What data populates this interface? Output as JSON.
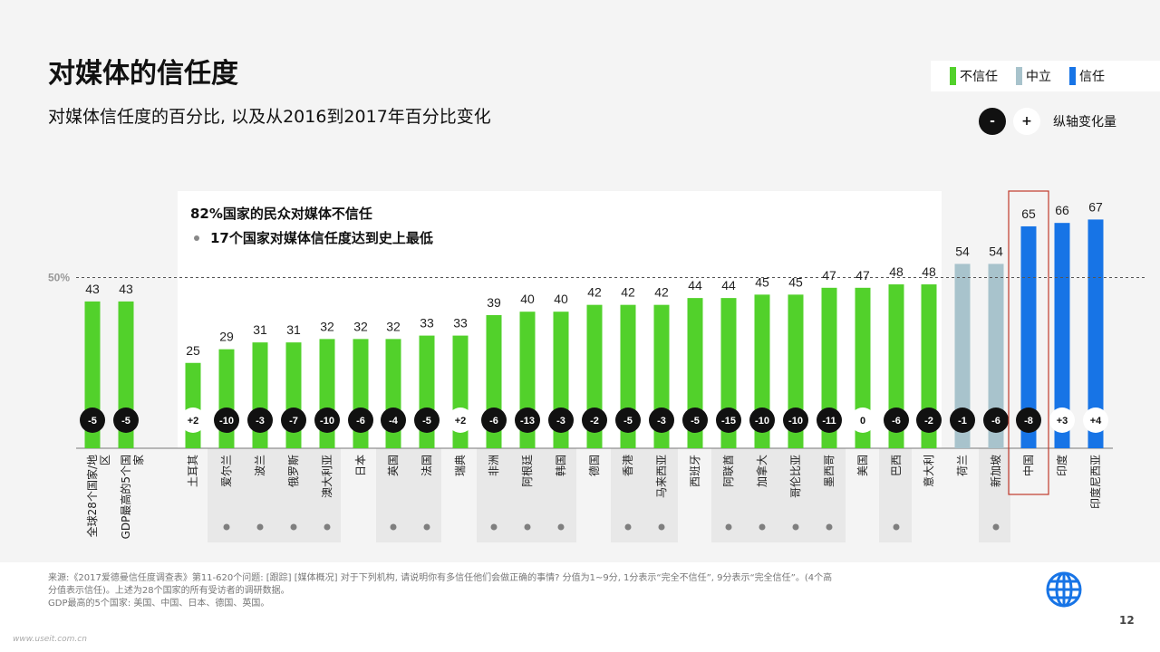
{
  "title": "对媒体的信任度",
  "subtitle": "对媒体信任度的百分比, 以及从2016到2017年百分比变化",
  "legend": [
    {
      "label": "不信任",
      "color": "#52d12b"
    },
    {
      "label": "中立",
      "color": "#a8c3cc"
    },
    {
      "label": "信任",
      "color": "#1774e6"
    }
  ],
  "change_key": {
    "minus": "-",
    "plus": "+",
    "label": "纵轴变化量"
  },
  "callout": {
    "title": "82%国家的民众对媒体不信任",
    "bullet": "17个国家对媒体信任度达到史上最低"
  },
  "colors": {
    "distrust": "#52d12b",
    "neutral": "#a8c3cc",
    "trust": "#1774e6",
    "highlight_box": "#c0392b"
  },
  "chart_data": {
    "type": "bar",
    "reference_line": {
      "value": 50,
      "label": "50%"
    },
    "categories": [
      "全球28个国家/地区",
      "GDP最高的5个国家",
      "土耳其",
      "爱尔兰",
      "波兰",
      "俄罗斯",
      "澳大利亚",
      "日本",
      "英国",
      "法国",
      "瑞典",
      "非洲",
      "阿根廷",
      "韩国",
      "德国",
      "香港",
      "马来西亚",
      "西班牙",
      "阿联酋",
      "加拿大",
      "哥伦比亚",
      "墨西哥",
      "美国",
      "巴西",
      "意大利",
      "荷兰",
      "新加坡",
      "中国",
      "印度",
      "印度尼西亚"
    ],
    "values": [
      43,
      43,
      25,
      29,
      31,
      31,
      32,
      32,
      32,
      33,
      33,
      39,
      40,
      40,
      42,
      42,
      42,
      44,
      44,
      45,
      45,
      47,
      47,
      48,
      48,
      54,
      54,
      65,
      66,
      67
    ],
    "changes": [
      "-5",
      "-5",
      "+2",
      "-10",
      "-3",
      "-7",
      "-10",
      "-6",
      "-4",
      "-5",
      "+2",
      "-6",
      "-13",
      "-3",
      "-2",
      "-5",
      "-3",
      "-5",
      "-15",
      "-10",
      "-10",
      "-11",
      "0",
      "-6",
      "-2",
      "-1",
      "-6",
      "-8",
      "+3",
      "+4"
    ],
    "groups": [
      "distrust",
      "distrust",
      "distrust",
      "distrust",
      "distrust",
      "distrust",
      "distrust",
      "distrust",
      "distrust",
      "distrust",
      "distrust",
      "distrust",
      "distrust",
      "distrust",
      "distrust",
      "distrust",
      "distrust",
      "distrust",
      "distrust",
      "distrust",
      "distrust",
      "distrust",
      "distrust",
      "distrust",
      "distrust",
      "neutral",
      "neutral",
      "trust",
      "trust",
      "trust"
    ],
    "all_time_low": [
      false,
      false,
      false,
      true,
      true,
      true,
      true,
      false,
      true,
      true,
      false,
      true,
      true,
      true,
      false,
      true,
      true,
      false,
      true,
      true,
      true,
      true,
      false,
      true,
      false,
      false,
      true,
      false,
      false,
      false
    ],
    "highlighted": "中国"
  },
  "footer": {
    "source": "来源:《2017爱德曼信任度调查表》第11-620个问题: [跟踪] [媒体概况] 对于下列机构, 请说明你有多信任他们会做正确的事情? 分值为1~9分, 1分表示“完全不信任”, 9分表示“完全信任”。(4个高分值表示信任)。上述为28个国家的所有受访者的调研数据。",
    "note": "GDP最高的5个国家: 美国、中国、日本、德国、英国。",
    "page_number": "12",
    "watermark": "www.useit.com.cn"
  }
}
